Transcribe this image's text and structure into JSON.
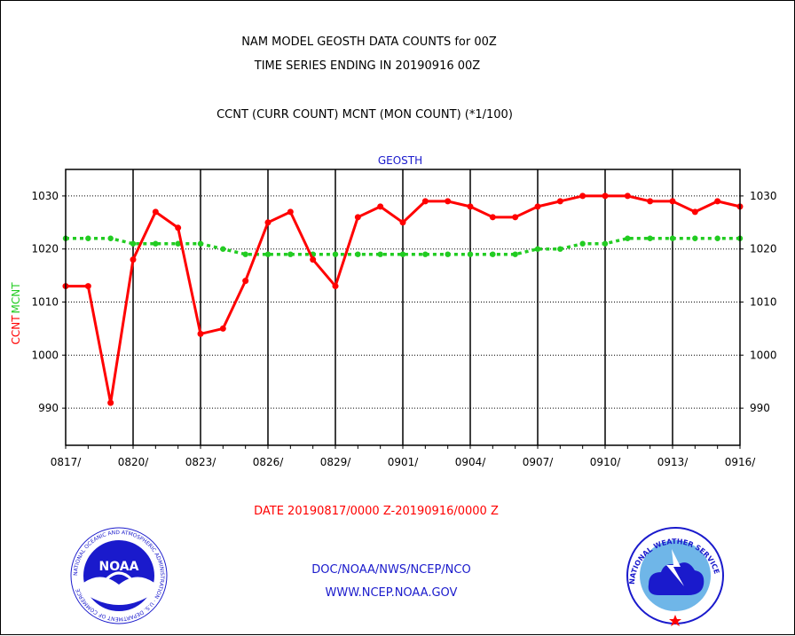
{
  "chart_data": {
    "type": "line",
    "title": "NAM MODEL GEOSTH DATA COUNTS for 00Z",
    "subtitle": "TIME SERIES ENDING IN 20190916 00Z",
    "legend_text": "CCNT (CURR COUNT) MCNT (MON COUNT) (*1/100)",
    "panel_label": "GEOSTH",
    "ylabel_ccnt": "CCNT",
    "ylabel_mcnt": "MCNT",
    "xlabel": "DATE 20190817/0000 Z-20190916/0000 Z",
    "ylim": [
      983,
      1035
    ],
    "yticks": [
      "990",
      "1000",
      "1010",
      "1020",
      "1030"
    ],
    "ytick_values": [
      990,
      1000,
      1010,
      1020,
      1030
    ],
    "xticks": [
      "0817/",
      "0820/",
      "0823/",
      "0826/",
      "0829/",
      "0901/",
      "0904/",
      "0907/",
      "0910/",
      "0913/",
      "0916/"
    ],
    "x_count": 31,
    "grid": true,
    "series": [
      {
        "name": "CCNT",
        "color": "#ff0000",
        "values": [
          1013,
          1013,
          991,
          1018,
          1027,
          1024,
          1004,
          1005,
          1014,
          1025,
          1027,
          1018,
          1013,
          1026,
          1028,
          1025,
          1029,
          1029,
          1028,
          1026,
          1026,
          1028,
          1029,
          1030,
          1030,
          1030,
          1029,
          1029,
          1027,
          1029,
          1028
        ]
      },
      {
        "name": "MCNT",
        "color": "#22cc22",
        "values": [
          1022,
          1022,
          1022,
          1021,
          1021,
          1021,
          1021,
          1020,
          1019,
          1019,
          1019,
          1019,
          1019,
          1019,
          1019,
          1019,
          1019,
          1019,
          1019,
          1019,
          1019,
          1020,
          1020,
          1021,
          1021,
          1022,
          1022,
          1022,
          1022,
          1022,
          1022
        ]
      }
    ]
  },
  "footer": {
    "line1": "DOC/NOAA/NWS/NCEP/NCO",
    "line2": "WWW.NCEP.NOAA.GOV"
  },
  "logos": {
    "left_text": "NOAA",
    "left_ring_text": "NATIONAL OCEANIC AND ATMOSPHERIC ADMINISTRATION · U.S. DEPARTMENT OF COMMERCE",
    "right_ring_text": "NATIONAL WEATHER SERVICE",
    "left_icon": "noaa-logo",
    "right_icon": "nws-logo"
  }
}
